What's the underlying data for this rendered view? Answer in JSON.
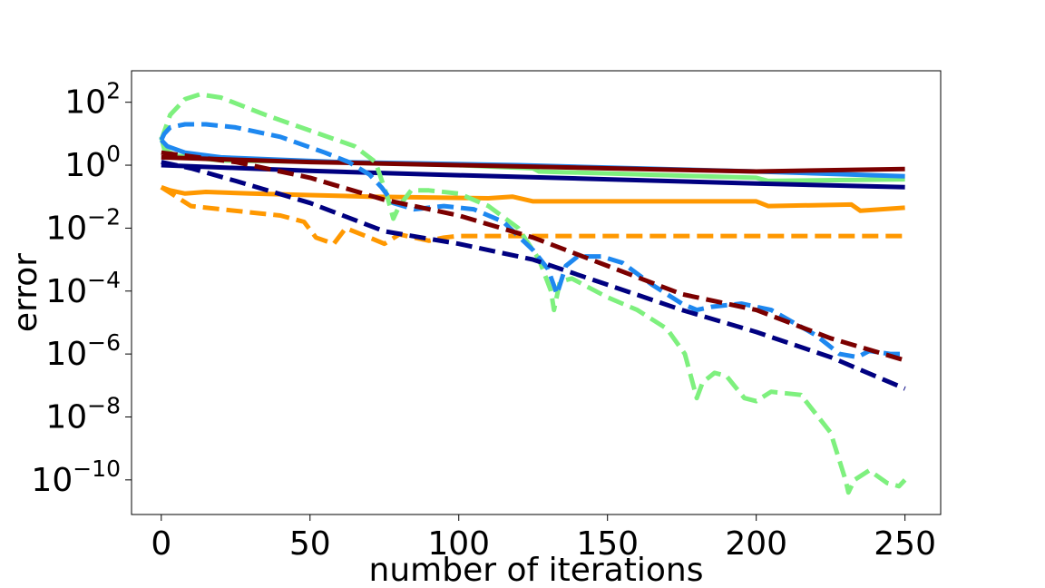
{
  "chart_data": {
    "type": "line",
    "title": "",
    "xlabel": "number of iterations",
    "ylabel": "error",
    "xlim": [
      -10,
      262
    ],
    "ylim_log10": [
      -11.1,
      3.0
    ],
    "yscale": "log",
    "legend": "none",
    "grid": false,
    "x_ticks": [
      0,
      50,
      100,
      150,
      200,
      250
    ],
    "x_tick_labels": [
      "0",
      "50",
      "100",
      "150",
      "200",
      "250"
    ],
    "y_ticks_log10": [
      2,
      0,
      -2,
      -4,
      -6,
      -8,
      -10
    ],
    "y_tick_labels": [
      {
        "base": "10",
        "exp": "2"
      },
      {
        "base": "10",
        "exp": "0"
      },
      {
        "base": "10",
        "exp": "−2"
      },
      {
        "base": "10",
        "exp": "−4"
      },
      {
        "base": "10",
        "exp": "−6"
      },
      {
        "base": "10",
        "exp": "−8"
      },
      {
        "base": "10",
        "exp": "−10"
      }
    ],
    "series": [
      {
        "name": "lightgreen-solid",
        "color": "#7ef07e",
        "dash": false,
        "points": [
          [
            0,
            0.9
          ],
          [
            1,
            0.5
          ],
          [
            5,
            0.3
          ],
          [
            20,
            0.15
          ],
          [
            60,
            0.1
          ],
          [
            100,
            0.0
          ],
          [
            125,
            -0.1
          ],
          [
            127,
            -0.2
          ],
          [
            200,
            -0.4
          ],
          [
            204,
            -0.5
          ],
          [
            250,
            -0.45
          ]
        ]
      },
      {
        "name": "blue-solid",
        "color": "#1e88f0",
        "dash": false,
        "points": [
          [
            0,
            0.8
          ],
          [
            2,
            0.6
          ],
          [
            8,
            0.4
          ],
          [
            20,
            0.25
          ],
          [
            60,
            0.1
          ],
          [
            120,
            0.0
          ],
          [
            200,
            -0.2
          ],
          [
            250,
            -0.35
          ]
        ]
      },
      {
        "name": "darkred-solid",
        "color": "#7b0000",
        "dash": false,
        "points": [
          [
            0,
            0.25
          ],
          [
            50,
            0.1
          ],
          [
            100,
            0.0
          ],
          [
            150,
            -0.1
          ],
          [
            200,
            -0.2
          ],
          [
            250,
            -0.12
          ]
        ]
      },
      {
        "name": "navy-solid",
        "color": "#000080",
        "dash": false,
        "points": [
          [
            0,
            0.0
          ],
          [
            50,
            -0.18
          ],
          [
            100,
            -0.32
          ],
          [
            150,
            -0.45
          ],
          [
            200,
            -0.58
          ],
          [
            250,
            -0.7
          ]
        ]
      },
      {
        "name": "orange-solid",
        "color": "#ff9800",
        "dash": false,
        "points": [
          [
            0,
            -0.7
          ],
          [
            3,
            -0.8
          ],
          [
            8,
            -0.9
          ],
          [
            15,
            -0.85
          ],
          [
            30,
            -0.9
          ],
          [
            50,
            -0.95
          ],
          [
            70,
            -1.0
          ],
          [
            110,
            -1.05
          ],
          [
            118,
            -1.0
          ],
          [
            125,
            -1.15
          ],
          [
            150,
            -1.15
          ],
          [
            200,
            -1.15
          ],
          [
            204,
            -1.3
          ],
          [
            232,
            -1.25
          ],
          [
            235,
            -1.45
          ],
          [
            250,
            -1.35
          ]
        ]
      },
      {
        "name": "orange-dashed",
        "color": "#ff9800",
        "dash": true,
        "points": [
          [
            0,
            -0.7
          ],
          [
            5,
            -1.0
          ],
          [
            10,
            -1.3
          ],
          [
            20,
            -1.4
          ],
          [
            30,
            -1.5
          ],
          [
            40,
            -1.6
          ],
          [
            48,
            -1.8
          ],
          [
            52,
            -2.3
          ],
          [
            58,
            -2.5
          ],
          [
            62,
            -2.0
          ],
          [
            70,
            -2.3
          ],
          [
            75,
            -2.5
          ],
          [
            80,
            -2.2
          ],
          [
            85,
            -2.3
          ],
          [
            90,
            -2.4
          ],
          [
            95,
            -2.3
          ],
          [
            100,
            -2.25
          ],
          [
            105,
            -2.25
          ],
          [
            115,
            -2.25
          ],
          [
            250,
            -2.25
          ]
        ]
      },
      {
        "name": "lightgreen-dashed",
        "color": "#7ef07e",
        "dash": true,
        "points": [
          [
            0,
            0.8
          ],
          [
            3,
            1.6
          ],
          [
            8,
            2.1
          ],
          [
            13,
            2.25
          ],
          [
            20,
            2.15
          ],
          [
            35,
            1.6
          ],
          [
            50,
            1.1
          ],
          [
            65,
            0.6
          ],
          [
            72,
            0.1
          ],
          [
            76,
            -1.0
          ],
          [
            78,
            -1.7
          ],
          [
            80,
            -1.3
          ],
          [
            84,
            -0.8
          ],
          [
            90,
            -0.8
          ],
          [
            100,
            -0.9
          ],
          [
            110,
            -1.3
          ],
          [
            120,
            -2.0
          ],
          [
            127,
            -3.0
          ],
          [
            131,
            -4.0
          ],
          [
            132,
            -4.6
          ],
          [
            134,
            -3.7
          ],
          [
            138,
            -3.6
          ],
          [
            144,
            -3.9
          ],
          [
            150,
            -4.2
          ],
          [
            160,
            -4.6
          ],
          [
            170,
            -5.2
          ],
          [
            176,
            -6.0
          ],
          [
            180,
            -7.4
          ],
          [
            182,
            -6.9
          ],
          [
            186,
            -6.6
          ],
          [
            190,
            -6.7
          ],
          [
            196,
            -7.4
          ],
          [
            200,
            -7.5
          ],
          [
            205,
            -7.2
          ],
          [
            215,
            -7.3
          ],
          [
            225,
            -8.5
          ],
          [
            230,
            -10.0
          ],
          [
            231,
            -10.4
          ],
          [
            233,
            -10.0
          ],
          [
            238,
            -9.7
          ],
          [
            244,
            -10.1
          ],
          [
            248,
            -10.2
          ],
          [
            250,
            -10.0
          ]
        ]
      },
      {
        "name": "blue-dashed",
        "color": "#1e88f0",
        "dash": true,
        "points": [
          [
            0,
            0.8
          ],
          [
            1,
            1.0
          ],
          [
            3,
            1.2
          ],
          [
            8,
            1.3
          ],
          [
            15,
            1.3
          ],
          [
            25,
            1.2
          ],
          [
            40,
            0.9
          ],
          [
            55,
            0.4
          ],
          [
            63,
            0.1
          ],
          [
            70,
            -0.3
          ],
          [
            74,
            -0.7
          ],
          [
            78,
            -1.2
          ],
          [
            85,
            -1.4
          ],
          [
            95,
            -1.3
          ],
          [
            105,
            -1.4
          ],
          [
            115,
            -1.8
          ],
          [
            125,
            -2.7
          ],
          [
            130,
            -3.3
          ],
          [
            133,
            -4.1
          ],
          [
            136,
            -3.2
          ],
          [
            140,
            -2.9
          ],
          [
            148,
            -2.9
          ],
          [
            155,
            -3.1
          ],
          [
            165,
            -3.8
          ],
          [
            175,
            -4.4
          ],
          [
            180,
            -4.6
          ],
          [
            185,
            -4.5
          ],
          [
            195,
            -4.4
          ],
          [
            205,
            -4.6
          ],
          [
            220,
            -5.4
          ],
          [
            228,
            -6.0
          ],
          [
            234,
            -6.1
          ],
          [
            238,
            -5.9
          ],
          [
            245,
            -6.0
          ],
          [
            250,
            -6.0
          ]
        ]
      },
      {
        "name": "darkred-dashed",
        "color": "#7b0000",
        "dash": true,
        "points": [
          [
            0,
            0.4
          ],
          [
            25,
            0.1
          ],
          [
            50,
            -0.4
          ],
          [
            75,
            -1.1
          ],
          [
            100,
            -1.6
          ],
          [
            125,
            -2.3
          ],
          [
            150,
            -3.2
          ],
          [
            175,
            -4.1
          ],
          [
            200,
            -4.6
          ],
          [
            225,
            -5.5
          ],
          [
            250,
            -6.2
          ]
        ]
      },
      {
        "name": "navy-dashed",
        "color": "#000080",
        "dash": true,
        "points": [
          [
            0,
            0.1
          ],
          [
            10,
            -0.1
          ],
          [
            25,
            -0.5
          ],
          [
            50,
            -1.2
          ],
          [
            75,
            -2.1
          ],
          [
            100,
            -2.5
          ],
          [
            125,
            -3.0
          ],
          [
            150,
            -3.8
          ],
          [
            175,
            -4.6
          ],
          [
            200,
            -5.3
          ],
          [
            225,
            -6.1
          ],
          [
            250,
            -7.1
          ]
        ]
      }
    ]
  }
}
